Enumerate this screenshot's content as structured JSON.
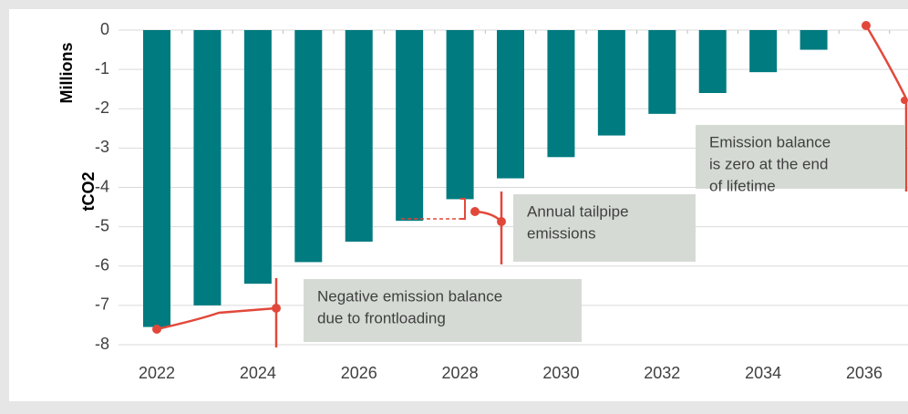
{
  "chart_data": {
    "type": "bar",
    "y_label": [
      "tCO2",
      "Millions"
    ],
    "categories": [
      "2022",
      null,
      "2024",
      null,
      "2026",
      null,
      "2028",
      null,
      "2030",
      null,
      "2032",
      null,
      "2034",
      null,
      "2036"
    ],
    "values": [
      -7.55,
      -7.0,
      -6.45,
      -5.9,
      -5.38,
      -4.85,
      -4.3,
      -3.77,
      -3.23,
      -2.68,
      -2.13,
      -1.6,
      -1.07,
      -0.5,
      0
    ],
    "color": "#007b80",
    "ylim": [
      -8,
      0
    ],
    "yticks": [
      0,
      -1,
      -2,
      -3,
      -4,
      -5,
      -6,
      -7,
      -8
    ],
    "annotations": [
      [
        "Negative emission balance",
        "due to frontloading"
      ],
      [
        "Annual tailpipe",
        "emissions"
      ],
      [
        "Emission balance",
        "is zero at the end",
        "of lifetime"
      ]
    ]
  }
}
